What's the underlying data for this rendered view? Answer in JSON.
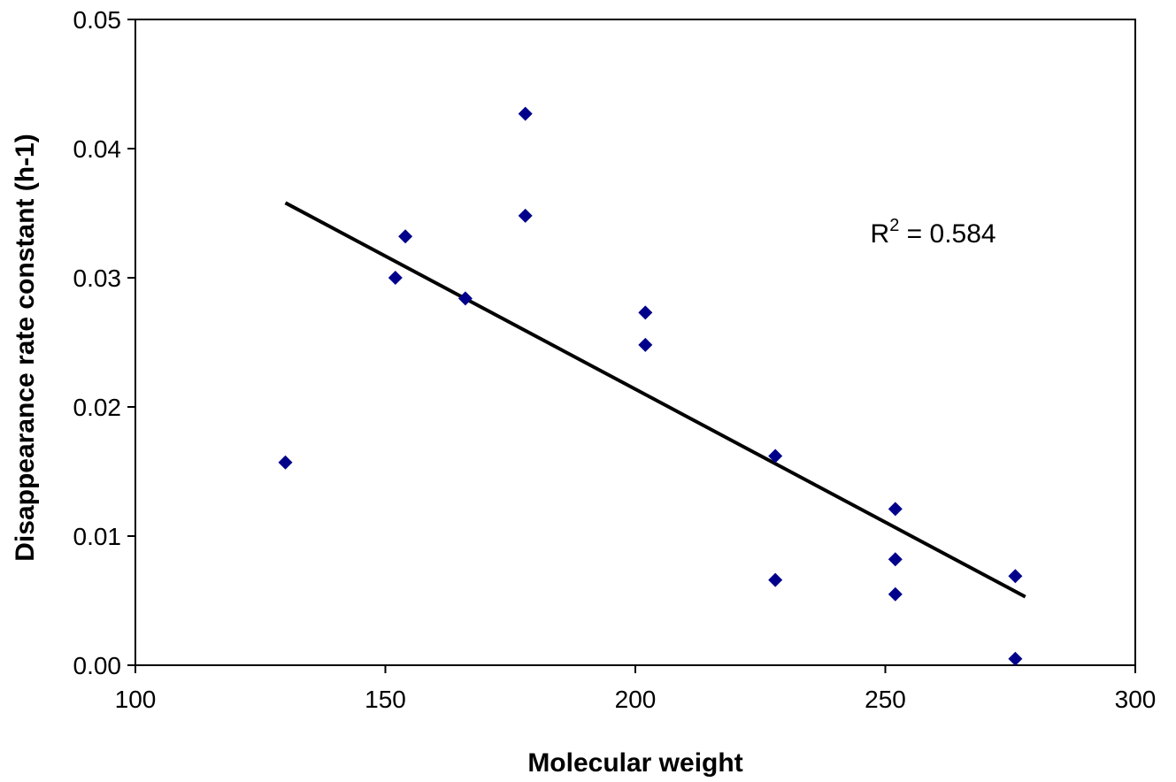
{
  "chart_data": {
    "type": "scatter",
    "title": "",
    "xlabel": "Molecular weight",
    "ylabel": "Disappearance rate constant (h-1)",
    "xlim": [
      100,
      300
    ],
    "ylim": [
      0,
      0.05
    ],
    "x_ticks": [
      100,
      150,
      200,
      250,
      300
    ],
    "y_ticks": [
      0.0,
      0.01,
      0.02,
      0.03,
      0.04,
      0.05
    ],
    "x_tick_labels": [
      "100",
      "150",
      "200",
      "250",
      "300"
    ],
    "y_tick_labels": [
      "0.00",
      "0.01",
      "0.02",
      "0.03",
      "0.04",
      "0.05"
    ],
    "grid": false,
    "legend": "none",
    "series": [
      {
        "color": "#00008b",
        "marker": "diamond",
        "points": [
          {
            "x": 130,
            "y": 0.0157
          },
          {
            "x": 152,
            "y": 0.03
          },
          {
            "x": 154,
            "y": 0.0332
          },
          {
            "x": 166,
            "y": 0.0284
          },
          {
            "x": 178,
            "y": 0.0427
          },
          {
            "x": 178,
            "y": 0.0348
          },
          {
            "x": 202,
            "y": 0.0273
          },
          {
            "x": 202,
            "y": 0.0248
          },
          {
            "x": 228,
            "y": 0.0162
          },
          {
            "x": 228,
            "y": 0.0066
          },
          {
            "x": 252,
            "y": 0.0121
          },
          {
            "x": 252,
            "y": 0.0082
          },
          {
            "x": 252,
            "y": 0.0055
          },
          {
            "x": 276,
            "y": 0.0069
          },
          {
            "x": 276,
            "y": 0.0005
          }
        ]
      }
    ],
    "trendline": {
      "type": "linear",
      "color": "#000000",
      "x_start": 130,
      "y_start": 0.0358,
      "x_end": 278,
      "y_end": 0.0053
    },
    "annotations": [
      {
        "text_main": "R",
        "text_sup": "2",
        "text_rest": " = 0.584",
        "x": 247,
        "y": 0.0335
      }
    ]
  }
}
